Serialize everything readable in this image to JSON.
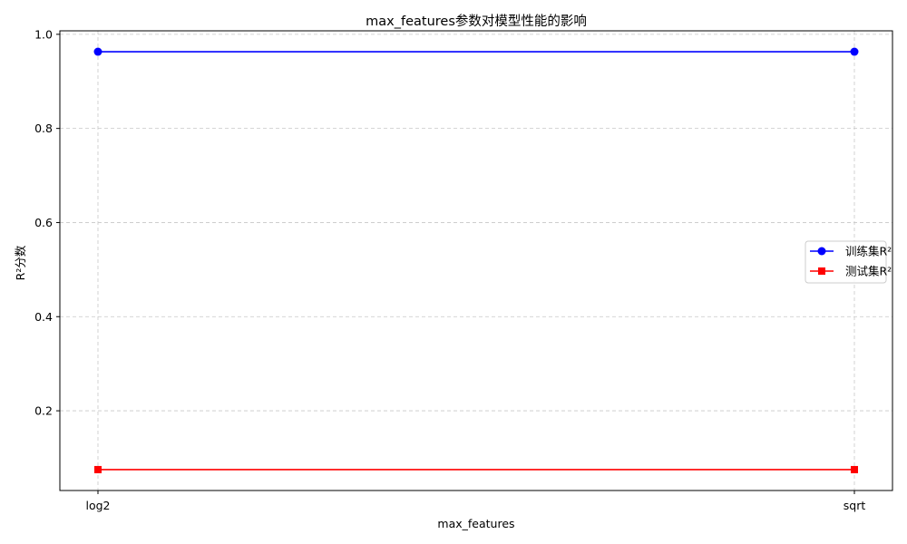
{
  "chart_data": {
    "type": "line",
    "title": "max_features参数对模型性能的影响",
    "xlabel": "max_features",
    "ylabel": "R²分数",
    "categories": [
      "log2",
      "sqrt"
    ],
    "series": [
      {
        "name": "训练集R²",
        "values": [
          0.963,
          0.963
        ],
        "color": "#0000ff",
        "marker": "circle"
      },
      {
        "name": "测试集R²",
        "values": [
          0.075,
          0.075
        ],
        "color": "#ff0000",
        "marker": "square"
      }
    ],
    "yticks": [
      0.2,
      0.4,
      0.6,
      0.8,
      1.0
    ],
    "ytick_labels": [
      "0.2",
      "0.4",
      "0.6",
      "0.8",
      "1.0"
    ],
    "ylim": [
      0.0306,
      1.0074
    ],
    "grid": true,
    "grid_style": "dashed",
    "legend_position": "center-right"
  }
}
